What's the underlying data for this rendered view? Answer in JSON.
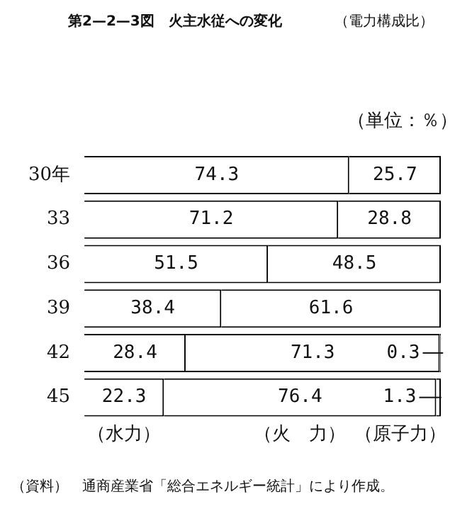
{
  "chart_data": {
    "type": "bar",
    "orientation": "horizontal",
    "stacked": true,
    "title": "第2—2—3図　火主水従への変化",
    "subtitle": "（電力構成比）",
    "categories": [
      "30年",
      "33",
      "36",
      "39",
      "42",
      "45"
    ],
    "series": [
      {
        "name": "（水力）",
        "color": "#ffffff",
        "values": [
          74.3,
          71.2,
          51.5,
          38.4,
          28.4,
          22.3
        ]
      },
      {
        "name": "（火　力）",
        "color": "#ffffff",
        "values": [
          25.7,
          28.8,
          48.5,
          61.6,
          71.3,
          76.4
        ]
      },
      {
        "name": "（原子力）",
        "color": "#ffffff",
        "values": [
          null,
          null,
          null,
          null,
          0.3,
          1.3
        ]
      }
    ],
    "data_labels": true,
    "grid": false,
    "legend": false,
    "annotations": [
      "（単位：％）",
      "（資料）　通商産業省「総合エネルギー統計」により作成。"
    ]
  }
}
